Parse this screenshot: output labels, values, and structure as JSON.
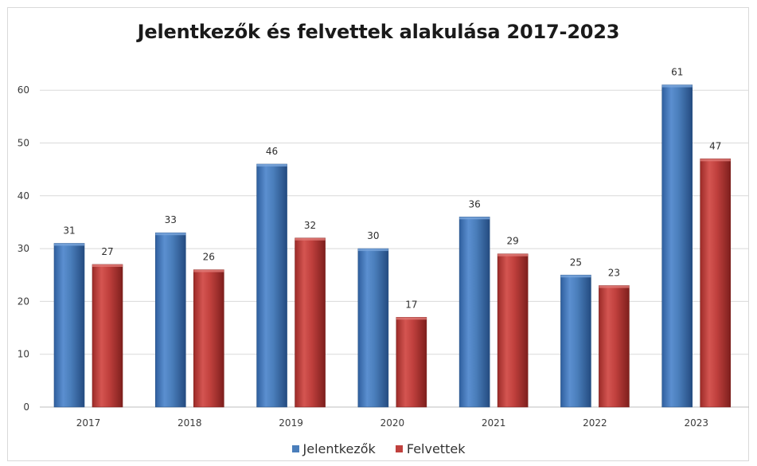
{
  "chart_data": {
    "type": "bar",
    "title": "Jelentkezők és felvettek alakulása 2017-2023",
    "categories": [
      "2017",
      "2018",
      "2019",
      "2020",
      "2021",
      "2022",
      "2023"
    ],
    "series": [
      {
        "name": "Jelentkezők",
        "values": [
          31,
          33,
          46,
          30,
          36,
          25,
          61
        ],
        "color": "#4a7ebb"
      },
      {
        "name": "Felvettek",
        "values": [
          27,
          26,
          32,
          17,
          29,
          23,
          47
        ],
        "color": "#c0403d"
      }
    ],
    "yticks": [
      "0",
      "10",
      "20",
      "30",
      "40",
      "50",
      "60"
    ],
    "ylim": [
      0,
      70
    ],
    "grid": true,
    "legend_position": "bottom"
  }
}
